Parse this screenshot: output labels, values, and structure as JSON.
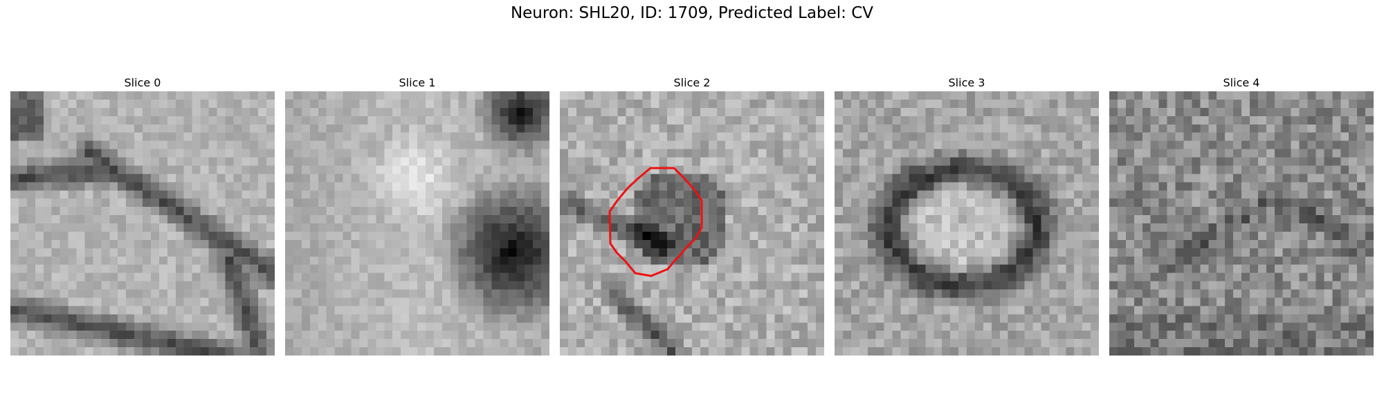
{
  "figure": {
    "title": "Neuron: SHL20, ID: 1709, Predicted Label: CV"
  },
  "panels": [
    {
      "title": "Slice 0",
      "pattern": "slice-0",
      "has_roi": false
    },
    {
      "title": "Slice 1",
      "pattern": "slice-1",
      "has_roi": false
    },
    {
      "title": "Slice 2",
      "pattern": "slice-2",
      "has_roi": true
    },
    {
      "title": "Slice 3",
      "pattern": "slice-3",
      "has_roi": false
    },
    {
      "title": "Slice 4",
      "pattern": "slice-4",
      "has_roi": false
    }
  ],
  "colors": {
    "roi_outline": "#ee1111",
    "background": "#ffffff"
  }
}
